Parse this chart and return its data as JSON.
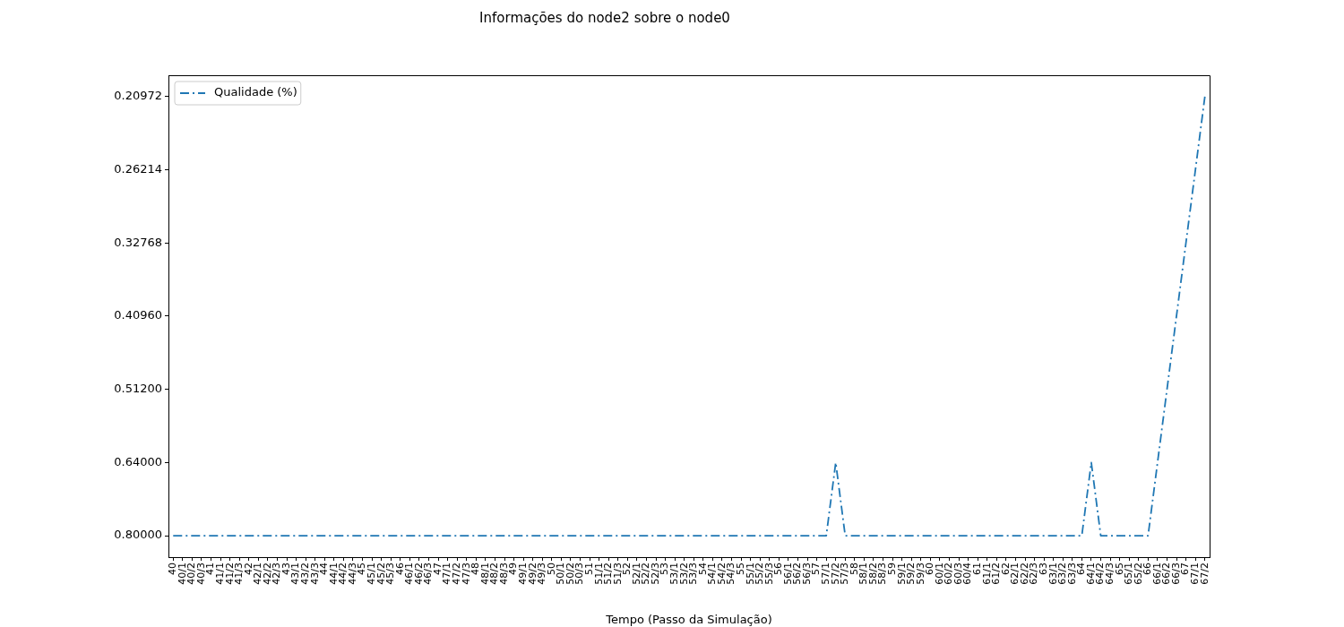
{
  "chart_data": {
    "type": "line",
    "title": "Informações do node2 sobre o node0",
    "xlabel": "Tempo (Passo da Simulação)",
    "categories": [
      "40",
      "40/1",
      "40/2",
      "40/3",
      "41",
      "41/1",
      "41/2",
      "41/3",
      "42",
      "42/1",
      "42/2",
      "42/3",
      "43",
      "43/1",
      "43/2",
      "43/3",
      "44",
      "44/1",
      "44/2",
      "44/3",
      "45",
      "45/1",
      "45/2",
      "45/3",
      "46",
      "46/1",
      "46/2",
      "46/3",
      "47",
      "47/1",
      "47/2",
      "47/3",
      "48",
      "48/1",
      "48/2",
      "48/3",
      "49",
      "49/1",
      "49/2",
      "49/3",
      "50",
      "50/1",
      "50/2",
      "50/3",
      "51",
      "51/1",
      "51/2",
      "51/3",
      "52",
      "52/1",
      "52/2",
      "52/3",
      "53",
      "53/1",
      "53/2",
      "53/3",
      "54",
      "54/1",
      "54/2",
      "54/3",
      "55",
      "55/1",
      "55/2",
      "55/3",
      "56",
      "56/1",
      "56/2",
      "56/3",
      "57",
      "57/1",
      "57/2",
      "57/3",
      "58",
      "58/1",
      "58/2",
      "58/3",
      "59",
      "59/1",
      "59/2",
      "59/3",
      "60",
      "60/1",
      "60/2",
      "60/3",
      "60/4",
      "61",
      "61/1",
      "61/2",
      "62",
      "62/1",
      "62/2",
      "62/3",
      "63",
      "63/1",
      "63/2",
      "63/3",
      "64",
      "64/1",
      "64/2",
      "64/3",
      "65",
      "65/1",
      "65/2",
      "66",
      "66/1",
      "66/2",
      "66/3",
      "67",
      "67/1",
      "67/2"
    ],
    "series": [
      {
        "name": "Qualidade (%)",
        "color": "#1f77b4",
        "values": [
          0.8,
          0.8,
          0.8,
          0.8,
          0.8,
          0.8,
          0.8,
          0.8,
          0.8,
          0.8,
          0.8,
          0.8,
          0.8,
          0.8,
          0.8,
          0.8,
          0.8,
          0.8,
          0.8,
          0.8,
          0.8,
          0.8,
          0.8,
          0.8,
          0.8,
          0.8,
          0.8,
          0.8,
          0.8,
          0.8,
          0.8,
          0.8,
          0.8,
          0.8,
          0.8,
          0.8,
          0.8,
          0.8,
          0.8,
          0.8,
          0.8,
          0.8,
          0.8,
          0.8,
          0.8,
          0.8,
          0.8,
          0.8,
          0.8,
          0.8,
          0.8,
          0.8,
          0.8,
          0.8,
          0.8,
          0.8,
          0.8,
          0.8,
          0.8,
          0.8,
          0.8,
          0.8,
          0.8,
          0.8,
          0.8,
          0.8,
          0.8,
          0.8,
          0.8,
          0.8,
          0.64,
          0.8,
          0.8,
          0.8,
          0.8,
          0.8,
          0.8,
          0.8,
          0.8,
          0.8,
          0.8,
          0.8,
          0.8,
          0.8,
          0.8,
          0.8,
          0.8,
          0.8,
          0.8,
          0.8,
          0.8,
          0.8,
          0.8,
          0.8,
          0.8,
          0.8,
          0.8,
          0.64,
          0.8,
          0.8,
          0.8,
          0.8,
          0.8,
          0.8,
          0.64,
          0.512,
          0.4096,
          0.32768,
          0.26214,
          0.20972
        ]
      }
    ],
    "log": "y",
    "ylim": [
      0.854,
      0.1965
    ],
    "yticks": [
      {
        "value": 0.8,
        "label": "0.80000"
      },
      {
        "value": 0.64,
        "label": "0.64000"
      },
      {
        "value": 0.512,
        "label": "0.51200"
      },
      {
        "value": 0.4096,
        "label": "0.40960"
      },
      {
        "value": 0.32768,
        "label": "0.32768"
      },
      {
        "value": 0.26214,
        "label": "0.26214"
      },
      {
        "value": 0.20972,
        "label": "0.20972"
      }
    ],
    "grid": false,
    "legend": "top left",
    "marker": "none",
    "line_style": "dashdot"
  }
}
